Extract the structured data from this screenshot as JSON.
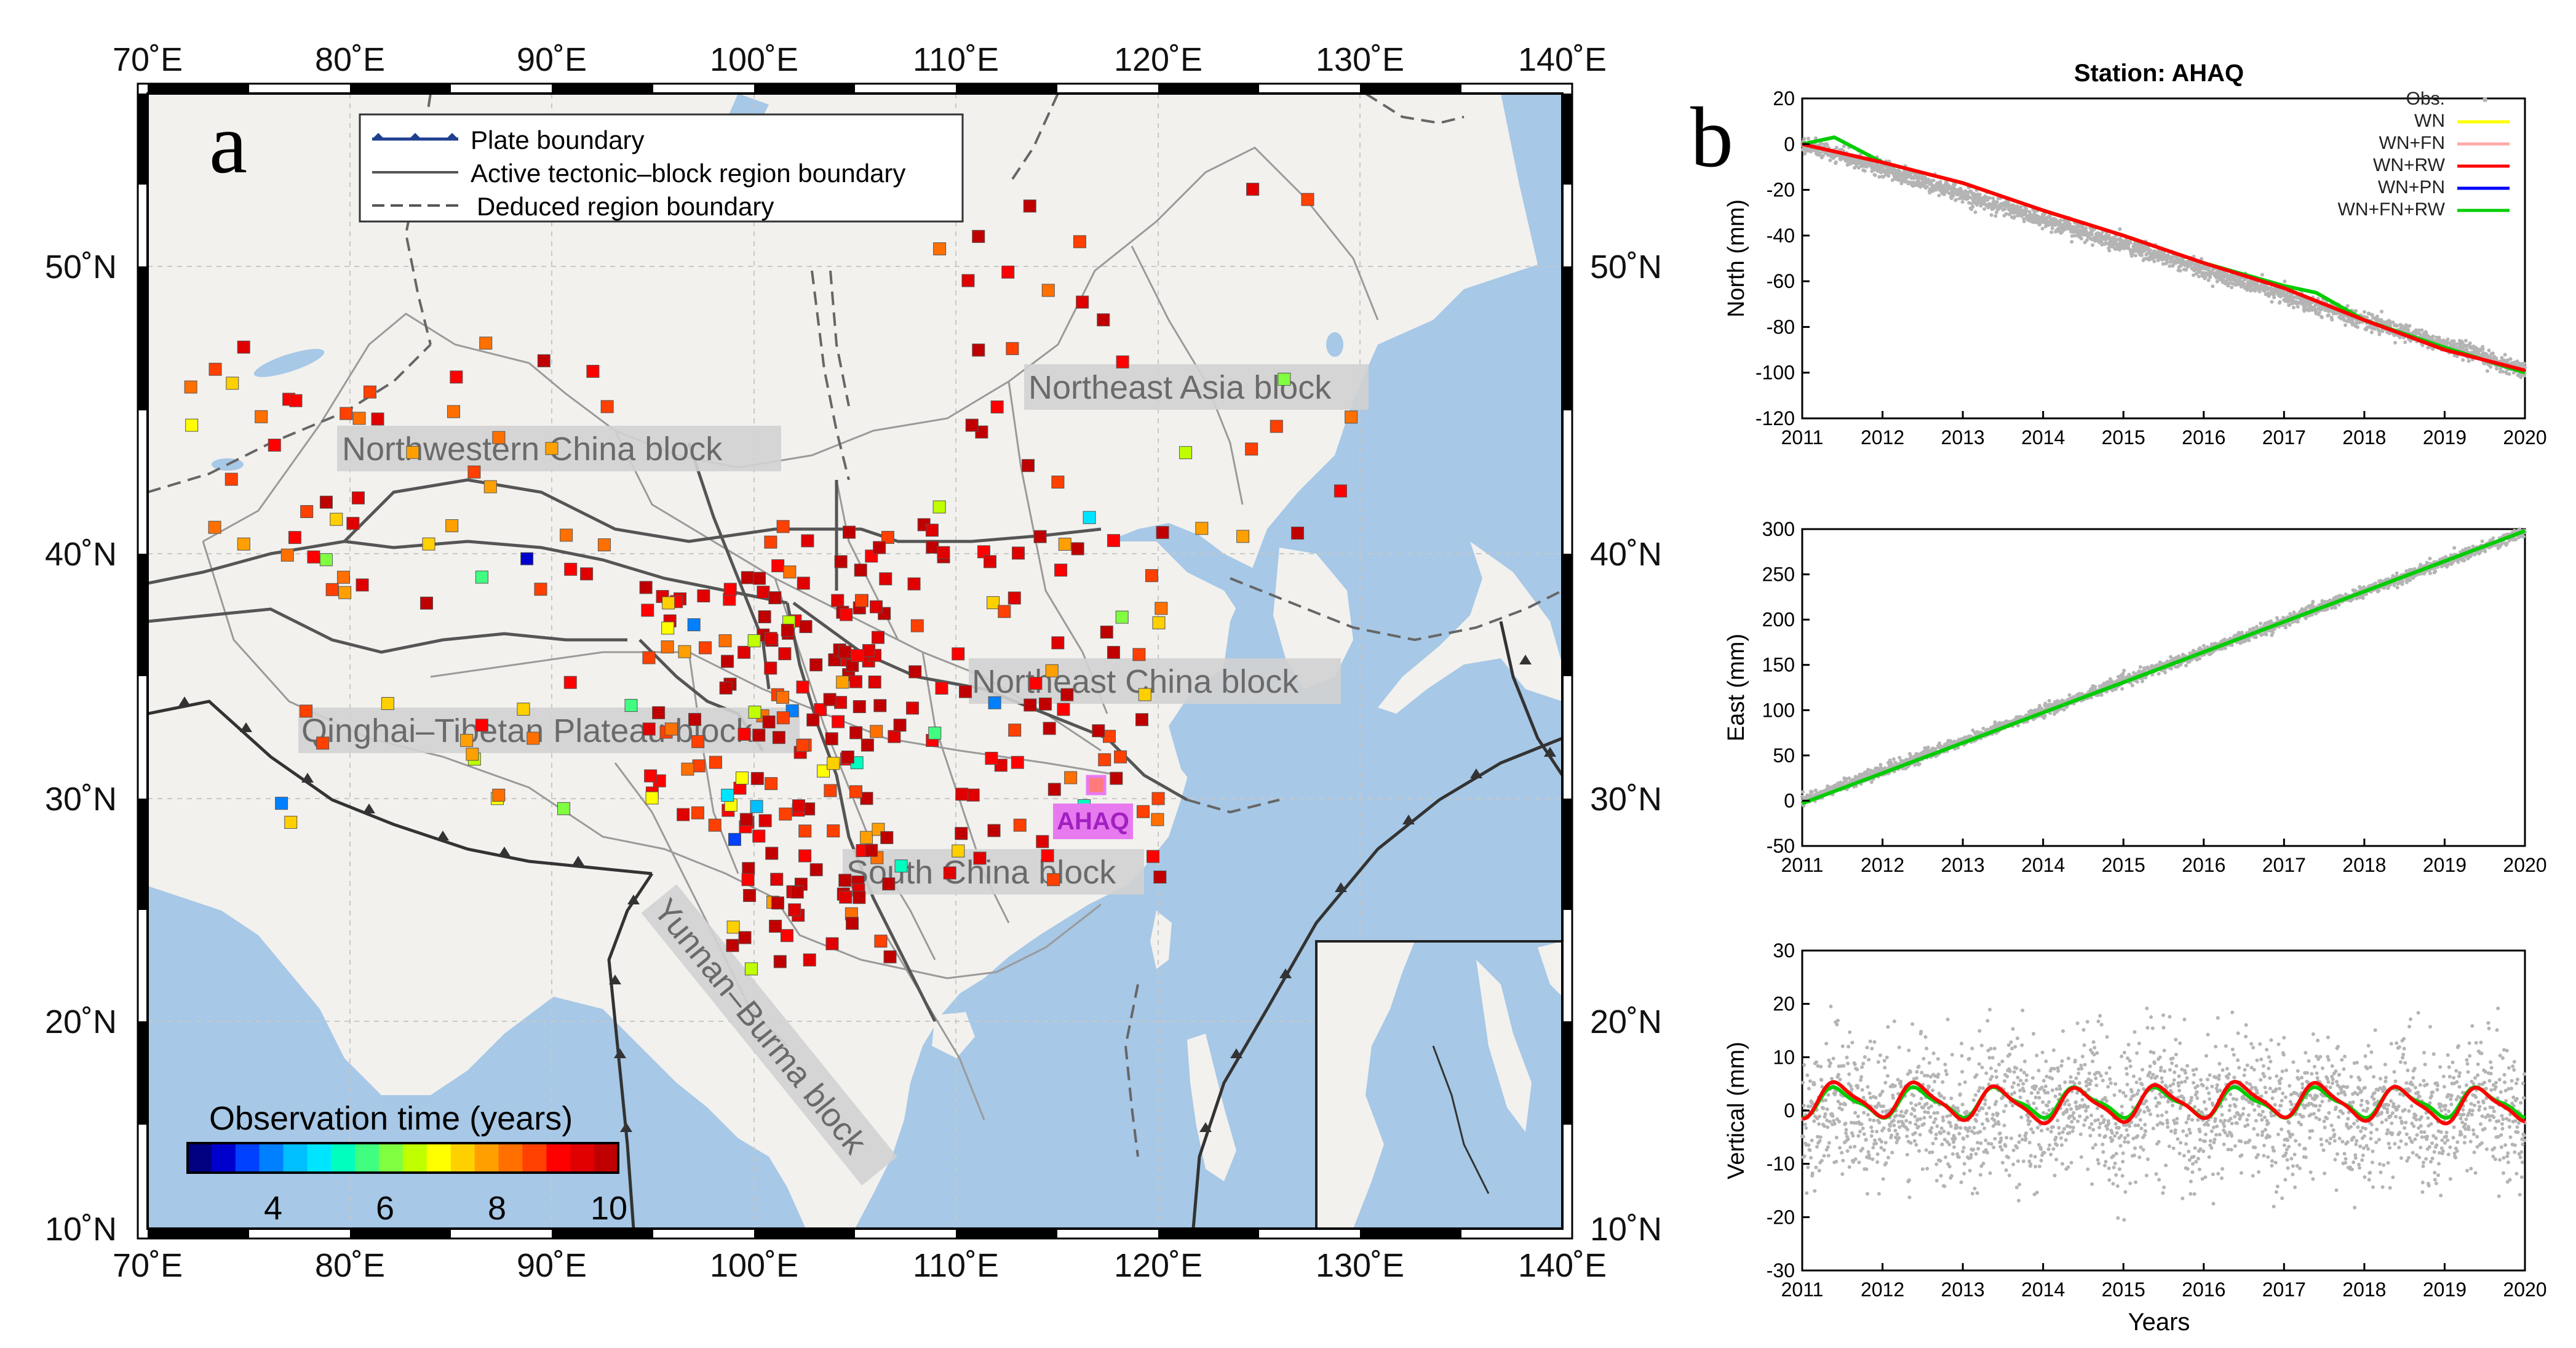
{
  "panel_a": {
    "label": "a",
    "lon_ticks": [
      "70˚E",
      "80˚E",
      "90˚E",
      "100˚E",
      "110˚E",
      "120˚E",
      "130˚E",
      "140˚E"
    ],
    "lat_ticks": [
      "10˚N",
      "20˚N",
      "30˚N",
      "40˚N",
      "50˚N"
    ],
    "legend": {
      "plate": "Plate boundary",
      "active": "Active tectonic–block region boundary",
      "deduced": "Deduced region boundary"
    },
    "blocks": {
      "northwestern": "Northwestern China block",
      "northeast_asia": "Northeast Asia block",
      "qinghai": "Qinghai–Tibetan Plateau block",
      "northeast_china": "Northeast China block",
      "south_china": "South China block",
      "yunnan": "Yunnan–Burma block"
    },
    "station_label": "AHAQ",
    "colorbar": {
      "title": "Observation time (years)",
      "ticks": [
        "4",
        "6",
        "8",
        "10"
      ],
      "min": 2.5,
      "max": 10.2,
      "colors": [
        "#000080",
        "#0000cd",
        "#0040ff",
        "#0080ff",
        "#00bfff",
        "#00e5ff",
        "#00ffbf",
        "#40ff80",
        "#80ff40",
        "#bfff00",
        "#ffff00",
        "#ffd000",
        "#ffa000",
        "#ff7000",
        "#ff4000",
        "#ff0000",
        "#e00000",
        "#c00000"
      ]
    },
    "colors": {
      "ocean": "#a7c8e6",
      "land": "#f2f1ee",
      "station_label_bg": "#e87af0",
      "station_label_fg": "#a020c0"
    }
  },
  "panel_b": {
    "label": "b",
    "title": "Station: AHAQ",
    "xlabel": "Years",
    "legend": [
      {
        "name": "Obs.",
        "color": "#b4b4b4",
        "kind": "dot"
      },
      {
        "name": "WN",
        "color": "#ffff00",
        "kind": "line"
      },
      {
        "name": "WN+FN",
        "color": "#ffaaaa",
        "kind": "line"
      },
      {
        "name": "WN+RW",
        "color": "#ff0000",
        "kind": "line"
      },
      {
        "name": "WN+PN",
        "color": "#0000ff",
        "kind": "line"
      },
      {
        "name": "WN+FN+RW",
        "color": "#00cc00",
        "kind": "line"
      }
    ],
    "x_ticks": [
      "2011",
      "2012",
      "2013",
      "2014",
      "2015",
      "2016",
      "2017",
      "2018",
      "2019",
      "2020"
    ]
  },
  "chart_data": [
    {
      "type": "scatter",
      "title": "Station: AHAQ",
      "ylabel": "North (mm)",
      "xlabel": "",
      "xlim": [
        2011,
        2020
      ],
      "ylim": [
        -120,
        20
      ],
      "y_ticks": [
        "20",
        "0",
        "-20",
        "-40",
        "-60",
        "-80",
        "-100",
        "-120"
      ],
      "series": [
        {
          "name": "Obs.",
          "trend_mm_per_yr": -11.0,
          "start": 0,
          "scatter_mm": 3
        },
        {
          "name": "WN+FN+RW",
          "x": [
            2011,
            2011.4,
            2012,
            2013,
            2014,
            2015,
            2016,
            2017,
            2017.4,
            2018,
            2019,
            2020
          ],
          "y": [
            0,
            3,
            -8,
            -17,
            -29,
            -40,
            -52,
            -62,
            -65,
            -77,
            -89,
            -100
          ]
        },
        {
          "name": "WN+RW",
          "x": [
            2011,
            2012,
            2013,
            2014,
            2015,
            2016,
            2017,
            2018,
            2019,
            2020
          ],
          "y": [
            0,
            -8,
            -17,
            -29,
            -40,
            -52,
            -63,
            -77,
            -90,
            -99
          ]
        }
      ]
    },
    {
      "type": "scatter",
      "title": "",
      "ylabel": "East (mm)",
      "xlabel": "",
      "xlim": [
        2011,
        2020
      ],
      "ylim": [
        -50,
        300
      ],
      "y_ticks": [
        "300",
        "250",
        "200",
        "150",
        "100",
        "50",
        "0",
        "-50"
      ],
      "series": [
        {
          "name": "Obs.",
          "trend_mm_per_yr": 33.0,
          "start": 0,
          "scatter_mm": 5
        },
        {
          "name": "WN+FN+RW",
          "x": [
            2011,
            2020
          ],
          "y": [
            -3,
            298
          ]
        }
      ]
    },
    {
      "type": "scatter",
      "title": "",
      "ylabel": "Vertical (mm)",
      "xlabel": "Years",
      "xlim": [
        2011,
        2020
      ],
      "ylim": [
        -30,
        30
      ],
      "y_ticks": [
        "30",
        "20",
        "10",
        "0",
        "-10",
        "-20",
        "-30"
      ],
      "series": [
        {
          "name": "Obs.",
          "trend_mm_per_yr": 0,
          "start": 0,
          "scatter_mm": 8
        },
        {
          "name": "WN+FN+RW",
          "seasonal_amplitude_mm": 2.5
        },
        {
          "name": "WN+RW",
          "seasonal_amplitude_mm": 3.0
        }
      ]
    }
  ]
}
